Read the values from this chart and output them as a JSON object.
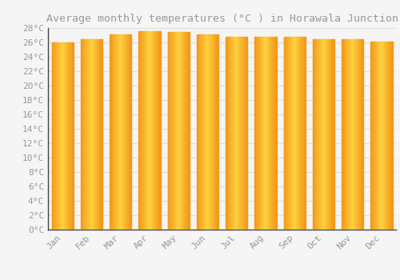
{
  "title": "Average monthly temperatures (°C ) in Horawala Junction",
  "months": [
    "Jan",
    "Feb",
    "Mar",
    "Apr",
    "May",
    "Jun",
    "Jul",
    "Aug",
    "Sep",
    "Oct",
    "Nov",
    "Dec"
  ],
  "temperatures": [
    26.0,
    26.5,
    27.1,
    27.6,
    27.5,
    27.1,
    26.8,
    26.8,
    26.8,
    26.5,
    26.4,
    26.1
  ],
  "bar_color_center": "#FFD050",
  "bar_color_edge": "#F4A020",
  "background_color": "#F5F5F5",
  "grid_color": "#DDDDDD",
  "text_color": "#999999",
  "ylim": [
    0,
    28
  ],
  "ytick_step": 2,
  "title_fontsize": 9.5,
  "tick_fontsize": 8,
  "bar_width": 0.75
}
